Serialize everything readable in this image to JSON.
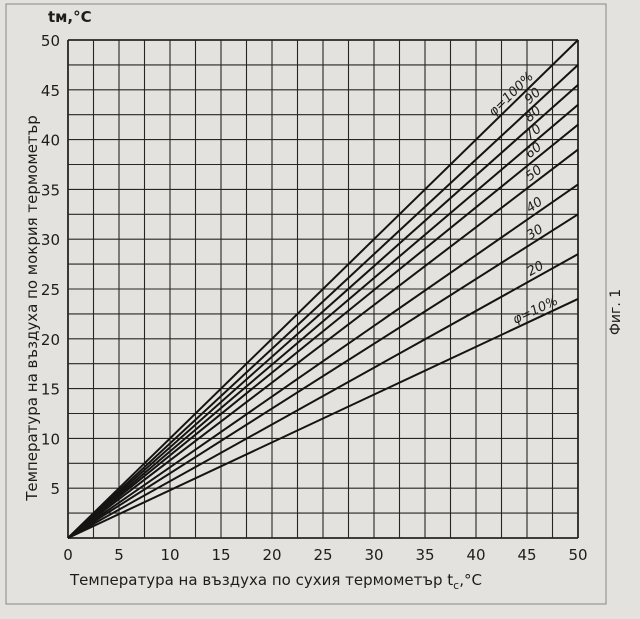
{
  "chart_data": {
    "type": "line",
    "title": "",
    "xlabel": "Температура на въздуха по сухия термометър",
    "xlabel_symbol": "t",
    "xlabel_subscript": "c",
    "xlabel_unit": ",°C",
    "ylabel": "Температура на въздуха по мокрия термометър",
    "yunit_label": "tм,°C",
    "xlim": [
      0,
      50
    ],
    "ylim": [
      0,
      50
    ],
    "grid": true,
    "grid_step": 2.5,
    "x_ticks": [
      "0",
      "5",
      "10",
      "15",
      "20",
      "25",
      "30",
      "35",
      "40",
      "45",
      "50"
    ],
    "y_ticks": [
      "5",
      "10",
      "15",
      "20",
      "25",
      "30",
      "35",
      "40",
      "45",
      "50"
    ],
    "series": [
      {
        "name": "φ=100%",
        "x": [
          0,
          50
        ],
        "y": [
          0,
          50
        ]
      },
      {
        "name": "90",
        "x": [
          0,
          50
        ],
        "y": [
          0,
          47.5
        ]
      },
      {
        "name": "80",
        "x": [
          0,
          50
        ],
        "y": [
          0,
          45.5
        ]
      },
      {
        "name": "70",
        "x": [
          0,
          50
        ],
        "y": [
          0,
          43.5
        ]
      },
      {
        "name": "60",
        "x": [
          0,
          50
        ],
        "y": [
          0,
          41.5
        ]
      },
      {
        "name": "50",
        "x": [
          0,
          50
        ],
        "y": [
          0,
          39
        ]
      },
      {
        "name": "40",
        "x": [
          0,
          50
        ],
        "y": [
          0,
          35.5
        ]
      },
      {
        "name": "30",
        "x": [
          0,
          50
        ],
        "y": [
          0,
          32.5
        ]
      },
      {
        "name": "20",
        "x": [
          0,
          50
        ],
        "y": [
          0,
          28.5
        ]
      },
      {
        "name": "φ=10%",
        "x": [
          0,
          50
        ],
        "y": [
          0,
          24
        ]
      }
    ],
    "figure_caption": "Фиг. 1"
  }
}
